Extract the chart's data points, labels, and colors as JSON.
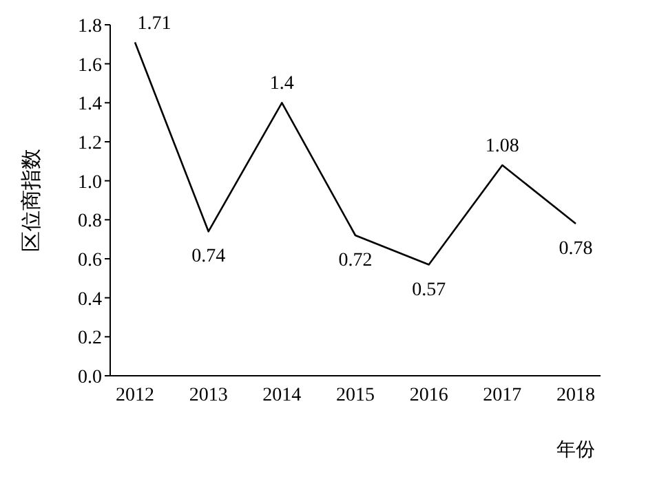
{
  "chart_data": {
    "type": "line",
    "xlabel": "年份",
    "ylabel": "区位商指数",
    "categories": [
      "2012",
      "2013",
      "2014",
      "2015",
      "2016",
      "2017",
      "2018"
    ],
    "series": [
      {
        "color": "#000000",
        "values": [
          1.71,
          0.74,
          1.4,
          0.72,
          0.57,
          1.08,
          0.78
        ]
      }
    ],
    "ylim": [
      0,
      1.8
    ],
    "yticks": [
      {
        "value": 0,
        "label": "0.0"
      },
      {
        "value": 0.2,
        "label": "0.2"
      },
      {
        "value": 0.4,
        "label": "0.4"
      },
      {
        "value": 0.6,
        "label": "0.6"
      },
      {
        "value": 0.8,
        "label": "0.8"
      },
      {
        "value": 1,
        "label": "1.0"
      },
      {
        "value": 1.2,
        "label": "1.2"
      },
      {
        "value": 1.4,
        "label": "1.4"
      },
      {
        "value": 1.6,
        "label": "1.6"
      },
      {
        "value": 1.8,
        "label": "1.8"
      }
    ],
    "data_labels": true,
    "grid": false,
    "legend": false,
    "marker": "none",
    "line_style": "solid"
  }
}
